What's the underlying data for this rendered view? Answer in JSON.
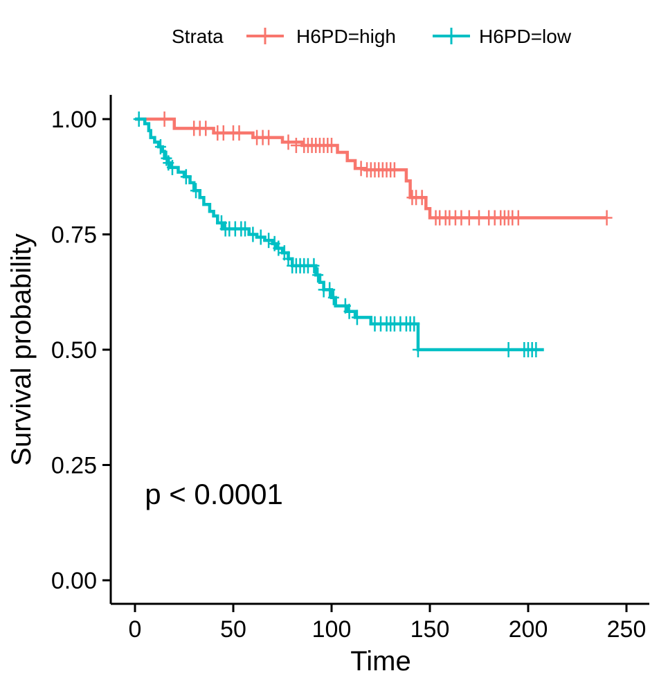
{
  "chart_data": {
    "type": "line",
    "subtype": "kaplan-meier step",
    "xlabel": "Time",
    "ylabel": "Survival probability",
    "xlim": [
      -10,
      260
    ],
    "ylim": [
      -0.05,
      1.05
    ],
    "x_ticks": [
      0,
      50,
      100,
      150,
      200,
      250
    ],
    "y_ticks": [
      0.0,
      0.25,
      0.5,
      0.75,
      1.0
    ],
    "x_tick_labels": [
      "0",
      "50",
      "100",
      "150",
      "200",
      "250"
    ],
    "y_tick_labels": [
      "0.00",
      "0.25",
      "0.50",
      "0.75",
      "1.00"
    ],
    "grid": false,
    "legend": {
      "title": "Strata",
      "position": "top",
      "entries": [
        "H6PD=high",
        "H6PD=low"
      ]
    },
    "annotations": [
      {
        "text": "p < 0.0001",
        "x": 5,
        "y": 0.2
      }
    ],
    "series": [
      {
        "name": "H6PD=high",
        "color": "#F8766D",
        "steps": [
          [
            0,
            1.0
          ],
          [
            20,
            0.98
          ],
          [
            40,
            0.97
          ],
          [
            60,
            0.96
          ],
          [
            75,
            0.95
          ],
          [
            85,
            0.943
          ],
          [
            103,
            0.928
          ],
          [
            108,
            0.91
          ],
          [
            112,
            0.893
          ],
          [
            117,
            0.89
          ],
          [
            138,
            0.866
          ],
          [
            140,
            0.83
          ],
          [
            148,
            0.806
          ],
          [
            150,
            0.786
          ],
          [
            240,
            0.786
          ]
        ],
        "censors": [
          [
            15,
            1.0
          ],
          [
            30,
            0.98
          ],
          [
            33,
            0.98
          ],
          [
            36,
            0.98
          ],
          [
            42,
            0.97
          ],
          [
            45,
            0.97
          ],
          [
            50,
            0.97
          ],
          [
            53,
            0.97
          ],
          [
            62,
            0.96
          ],
          [
            65,
            0.96
          ],
          [
            68,
            0.96
          ],
          [
            78,
            0.95
          ],
          [
            82,
            0.943
          ],
          [
            86,
            0.943
          ],
          [
            88,
            0.943
          ],
          [
            90,
            0.943
          ],
          [
            92,
            0.943
          ],
          [
            94,
            0.943
          ],
          [
            96,
            0.943
          ],
          [
            98,
            0.943
          ],
          [
            100,
            0.943
          ],
          [
            115,
            0.893
          ],
          [
            118,
            0.89
          ],
          [
            120,
            0.89
          ],
          [
            122,
            0.89
          ],
          [
            124,
            0.89
          ],
          [
            126,
            0.89
          ],
          [
            128,
            0.89
          ],
          [
            130,
            0.89
          ],
          [
            132,
            0.89
          ],
          [
            141,
            0.83
          ],
          [
            143,
            0.83
          ],
          [
            146,
            0.83
          ],
          [
            153,
            0.786
          ],
          [
            155,
            0.786
          ],
          [
            158,
            0.786
          ],
          [
            160,
            0.786
          ],
          [
            163,
            0.786
          ],
          [
            166,
            0.786
          ],
          [
            170,
            0.786
          ],
          [
            175,
            0.786
          ],
          [
            180,
            0.786
          ],
          [
            183,
            0.786
          ],
          [
            186,
            0.786
          ],
          [
            188,
            0.786
          ],
          [
            190,
            0.786
          ],
          [
            192,
            0.786
          ],
          [
            195,
            0.786
          ],
          [
            240,
            0.786
          ]
        ]
      },
      {
        "name": "H6PD=low",
        "color": "#00BFC4",
        "steps": [
          [
            0,
            1.0
          ],
          [
            5,
            0.99
          ],
          [
            7,
            0.975
          ],
          [
            8,
            0.96
          ],
          [
            10,
            0.95
          ],
          [
            12,
            0.94
          ],
          [
            14,
            0.93
          ],
          [
            15,
            0.915
          ],
          [
            17,
            0.905
          ],
          [
            18,
            0.895
          ],
          [
            22,
            0.885
          ],
          [
            25,
            0.875
          ],
          [
            28,
            0.862
          ],
          [
            30,
            0.845
          ],
          [
            33,
            0.83
          ],
          [
            35,
            0.815
          ],
          [
            38,
            0.8
          ],
          [
            40,
            0.79
          ],
          [
            42,
            0.775
          ],
          [
            45,
            0.762
          ],
          [
            58,
            0.75
          ],
          [
            62,
            0.744
          ],
          [
            66,
            0.737
          ],
          [
            70,
            0.73
          ],
          [
            72,
            0.72
          ],
          [
            75,
            0.71
          ],
          [
            78,
            0.697
          ],
          [
            80,
            0.682
          ],
          [
            92,
            0.662
          ],
          [
            94,
            0.646
          ],
          [
            96,
            0.63
          ],
          [
            100,
            0.613
          ],
          [
            102,
            0.595
          ],
          [
            108,
            0.583
          ],
          [
            112,
            0.57
          ],
          [
            120,
            0.556
          ],
          [
            144,
            0.5
          ],
          [
            208,
            0.5
          ]
        ],
        "censors": [
          [
            2,
            1.0
          ],
          [
            13,
            0.94
          ],
          [
            16,
            0.915
          ],
          [
            17,
            0.905
          ],
          [
            19,
            0.895
          ],
          [
            26,
            0.875
          ],
          [
            31,
            0.845
          ],
          [
            44,
            0.775
          ],
          [
            46,
            0.762
          ],
          [
            48,
            0.762
          ],
          [
            51,
            0.762
          ],
          [
            54,
            0.762
          ],
          [
            56,
            0.762
          ],
          [
            60,
            0.75
          ],
          [
            64,
            0.744
          ],
          [
            68,
            0.737
          ],
          [
            71,
            0.73
          ],
          [
            73,
            0.72
          ],
          [
            76,
            0.71
          ],
          [
            78,
            0.697
          ],
          [
            80,
            0.682
          ],
          [
            82,
            0.682
          ],
          [
            84,
            0.682
          ],
          [
            86,
            0.682
          ],
          [
            88,
            0.682
          ],
          [
            91,
            0.682
          ],
          [
            93,
            0.662
          ],
          [
            96,
            0.63
          ],
          [
            99,
            0.63
          ],
          [
            101,
            0.613
          ],
          [
            107,
            0.595
          ],
          [
            109,
            0.583
          ],
          [
            113,
            0.57
          ],
          [
            122,
            0.556
          ],
          [
            125,
            0.556
          ],
          [
            128,
            0.556
          ],
          [
            130,
            0.556
          ],
          [
            132,
            0.556
          ],
          [
            135,
            0.556
          ],
          [
            138,
            0.556
          ],
          [
            140,
            0.556
          ],
          [
            142,
            0.556
          ],
          [
            144,
            0.5
          ],
          [
            190,
            0.5
          ],
          [
            198,
            0.5
          ],
          [
            200,
            0.5
          ],
          [
            202,
            0.5
          ],
          [
            204,
            0.5
          ]
        ]
      }
    ]
  }
}
